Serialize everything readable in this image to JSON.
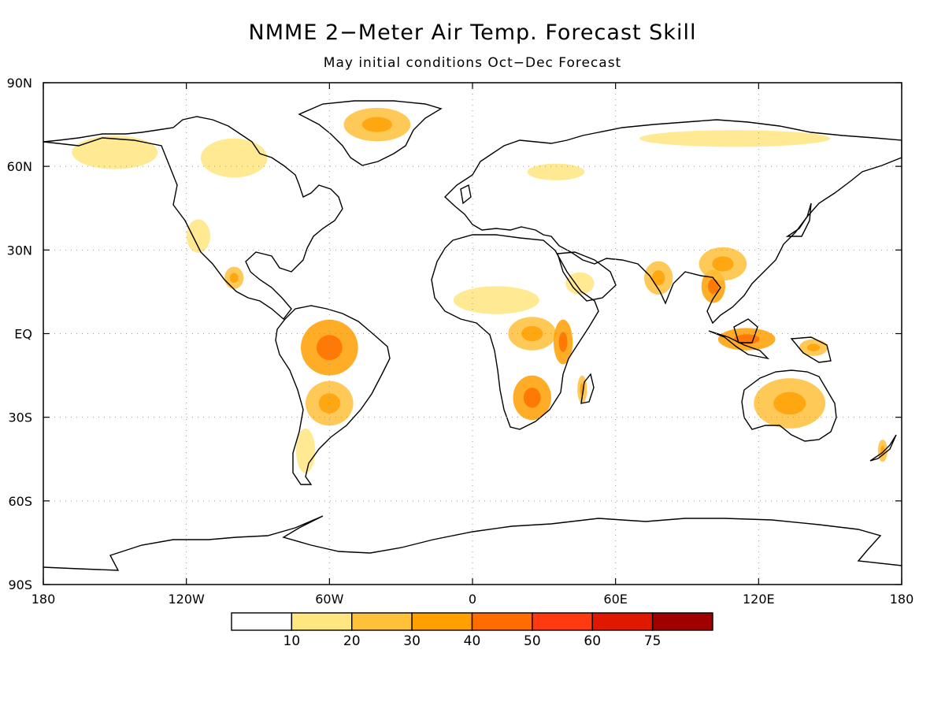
{
  "title": "NMME 2−Meter Air Temp. Forecast Skill",
  "subtitle": "May initial conditions   Oct−Dec Forecast",
  "axes": {
    "lat_labels": [
      "90N",
      "60N",
      "30N",
      "EQ",
      "30S",
      "60S",
      "90S"
    ],
    "lon_labels": [
      "180",
      "120W",
      "60W",
      "0",
      "60E",
      "120E",
      "180"
    ]
  },
  "colorbar": {
    "bins": [
      {
        "color": "#ffffff"
      },
      {
        "color": "#ffe680"
      },
      {
        "color": "#ffc03a"
      },
      {
        "color": "#ff9f00"
      },
      {
        "color": "#ff6c00"
      },
      {
        "color": "#ff3a10"
      },
      {
        "color": "#e01800"
      },
      {
        "color": "#a00000"
      }
    ],
    "labels": [
      "10",
      "20",
      "30",
      "40",
      "50",
      "60",
      "75"
    ]
  },
  "colors": {
    "land_outline": "#000000",
    "grid": "#999999"
  },
  "skill_regions": [
    {
      "name": "alaska",
      "lat": 65,
      "lon": -150,
      "rlat": 6,
      "rlon": 18,
      "level": 1
    },
    {
      "name": "northern-canada",
      "lat": 63,
      "lon": -100,
      "rlat": 7,
      "rlon": 14,
      "level": 1
    },
    {
      "name": "greenland",
      "lat": 75,
      "lon": -40,
      "rlat": 6,
      "rlon": 14,
      "level": 2
    },
    {
      "name": "western-us",
      "lat": 35,
      "lon": -115,
      "rlat": 6,
      "rlon": 5,
      "level": 1
    },
    {
      "name": "mexico",
      "lat": 20,
      "lon": -100,
      "rlat": 4,
      "rlon": 4,
      "level": 2
    },
    {
      "name": "amazon",
      "lat": -5,
      "lon": -60,
      "rlat": 10,
      "rlon": 12,
      "level": 3
    },
    {
      "name": "south-america-south",
      "lat": -25,
      "lon": -60,
      "rlat": 8,
      "rlon": 10,
      "level": 2
    },
    {
      "name": "patagonia",
      "lat": -42,
      "lon": -70,
      "rlat": 8,
      "rlon": 4,
      "level": 1
    },
    {
      "name": "sahel",
      "lat": 12,
      "lon": 10,
      "rlat": 5,
      "rlon": 18,
      "level": 1
    },
    {
      "name": "central-africa",
      "lat": 0,
      "lon": 25,
      "rlat": 6,
      "rlon": 10,
      "level": 2
    },
    {
      "name": "east-africa",
      "lat": -3,
      "lon": 38,
      "rlat": 8,
      "rlon": 4,
      "level": 3
    },
    {
      "name": "southern-africa",
      "lat": -23,
      "lon": 25,
      "rlat": 8,
      "rlon": 8,
      "level": 3
    },
    {
      "name": "madagascar",
      "lat": -20,
      "lon": 46,
      "rlat": 5,
      "rlon": 2,
      "level": 2
    },
    {
      "name": "arabia",
      "lat": 18,
      "lon": 45,
      "rlat": 4,
      "rlon": 6,
      "level": 1
    },
    {
      "name": "india",
      "lat": 20,
      "lon": 78,
      "rlat": 6,
      "rlon": 6,
      "level": 2
    },
    {
      "name": "southeast-asia",
      "lat": 17,
      "lon": 101,
      "rlat": 6,
      "rlon": 5,
      "level": 3
    },
    {
      "name": "southern-china",
      "lat": 25,
      "lon": 105,
      "rlat": 6,
      "rlon": 10,
      "level": 2
    },
    {
      "name": "indonesia",
      "lat": -2,
      "lon": 115,
      "rlat": 4,
      "rlon": 12,
      "level": 3
    },
    {
      "name": "new-guinea",
      "lat": -5,
      "lon": 143,
      "rlat": 3,
      "rlon": 6,
      "level": 2
    },
    {
      "name": "australia",
      "lat": -25,
      "lon": 133,
      "rlat": 9,
      "rlon": 15,
      "level": 2
    },
    {
      "name": "siberia-north",
      "lat": 70,
      "lon": 110,
      "rlat": 3,
      "rlon": 40,
      "level": 1
    },
    {
      "name": "russia-west",
      "lat": 58,
      "lon": 35,
      "rlat": 3,
      "rlon": 12,
      "level": 1
    },
    {
      "name": "new-zealand",
      "lat": -42,
      "lon": 172,
      "rlat": 4,
      "rlon": 2,
      "level": 2
    }
  ]
}
